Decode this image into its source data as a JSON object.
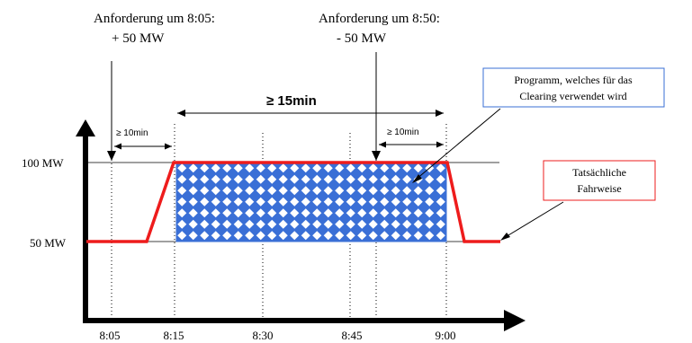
{
  "requests": [
    {
      "line1": "Anforderung um 8:05:",
      "line2": "+ 50 MW"
    },
    {
      "line1": "Anforderung um 8:50:",
      "line2": "- 50 MW"
    }
  ],
  "intervals": {
    "left_min": "≥ 10min",
    "main": "≥ 15min",
    "right_min": "≥ 10min"
  },
  "callouts": {
    "program_line1": "Programm, welches für das",
    "program_line2": "Clearing verwendet wird",
    "actual_line1": "Tatsächliche",
    "actual_line2": "Fahrweise"
  },
  "y_labels": [
    "100 MW",
    "50 MW"
  ],
  "x_labels": [
    "8:05",
    "8:15",
    "8:30",
    "8:45",
    "9:00"
  ],
  "colors": {
    "program_fill": "#3a6fd6",
    "program_border": "#3a6fd6",
    "actual_line": "#ee1c1c",
    "callout_border": "#ee1c1c"
  }
}
